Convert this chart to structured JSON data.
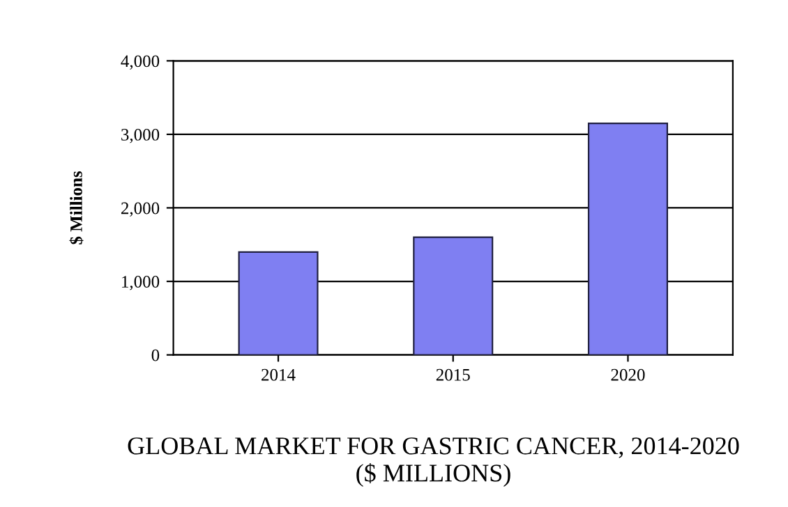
{
  "chart_data": {
    "type": "bar",
    "title": "GLOBAL MARKET FOR GASTRIC CANCER, 2014-2020\n($ MILLIONS)",
    "ylabel": "$ Millions",
    "categories": [
      "2014",
      "2015",
      "2020"
    ],
    "values": [
      1400,
      1600,
      3150
    ],
    "color": "#7f7ff2",
    "ylim": [
      0,
      4000
    ],
    "yticks": [
      0,
      {
        "value": 1000,
        "label": "1,000"
      },
      {
        "value": 2000,
        "label": "2,000"
      },
      {
        "value": 3000,
        "label": "3,000"
      },
      {
        "value": 4000,
        "label": "4,000"
      }
    ],
    "grid": "y"
  }
}
